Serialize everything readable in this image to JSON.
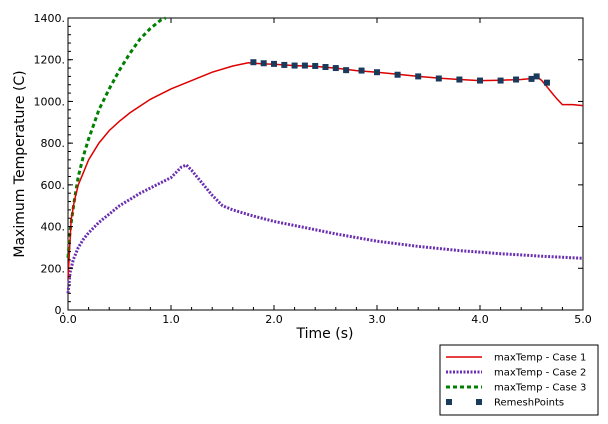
{
  "chart_data": {
    "type": "line",
    "xlabel": "Time (s)",
    "ylabel": "Maximum Temperature (C)",
    "xlim": [
      0,
      5
    ],
    "ylim": [
      0,
      1400
    ],
    "xticks": [
      "0.0",
      "1.0",
      "2.0",
      "3.0",
      "4.0",
      "5.0"
    ],
    "yticks": [
      "0.",
      "200.",
      "400.",
      "600.",
      "800.",
      "1000.",
      "1200.",
      "1400."
    ],
    "grid": false,
    "legend_position": "bottom-right-outside",
    "series": [
      {
        "name": "maxTemp - Case 1",
        "color": "#dd0000",
        "style": "solid",
        "x": [
          0.0,
          0.03,
          0.06,
          0.1,
          0.15,
          0.2,
          0.3,
          0.4,
          0.5,
          0.6,
          0.8,
          1.0,
          1.2,
          1.4,
          1.6,
          1.75,
          1.9,
          2.0,
          2.2,
          2.4,
          2.6,
          2.8,
          3.0,
          3.2,
          3.4,
          3.6,
          3.8,
          4.0,
          4.2,
          4.4,
          4.5,
          4.55,
          4.6,
          4.65,
          4.7,
          4.75,
          4.8,
          4.9,
          5.0
        ],
        "y": [
          150,
          430,
          520,
          600,
          660,
          720,
          800,
          860,
          905,
          945,
          1010,
          1060,
          1100,
          1140,
          1170,
          1185,
          1180,
          1178,
          1172,
          1168,
          1160,
          1148,
          1140,
          1130,
          1120,
          1112,
          1105,
          1100,
          1102,
          1105,
          1110,
          1120,
          1100,
          1070,
          1040,
          1010,
          985,
          985,
          980
        ]
      },
      {
        "name": "maxTemp - Case 2",
        "color": "#6a2fb0",
        "style": "dotted",
        "x": [
          0.0,
          0.02,
          0.05,
          0.1,
          0.15,
          0.2,
          0.3,
          0.4,
          0.5,
          0.6,
          0.7,
          0.8,
          0.9,
          1.0,
          1.05,
          1.1,
          1.15,
          1.2,
          1.3,
          1.4,
          1.5,
          1.6,
          1.8,
          2.0,
          2.3,
          2.6,
          3.0,
          3.4,
          3.8,
          4.2,
          4.6,
          5.0
        ],
        "y": [
          80,
          180,
          240,
          300,
          340,
          370,
          420,
          460,
          500,
          530,
          560,
          585,
          610,
          635,
          660,
          685,
          695,
          670,
          610,
          550,
          500,
          480,
          450,
          425,
          395,
          365,
          330,
          305,
          285,
          270,
          258,
          248
        ]
      },
      {
        "name": "maxTemp - Case 3",
        "color": "#008000",
        "style": "dashed",
        "x": [
          0.0,
          0.02,
          0.04,
          0.06,
          0.08,
          0.1,
          0.15,
          0.2,
          0.25,
          0.3,
          0.4,
          0.5,
          0.6,
          0.7,
          0.8,
          0.9,
          0.95
        ],
        "y": [
          250,
          380,
          450,
          520,
          580,
          640,
          740,
          820,
          890,
          960,
          1060,
          1150,
          1230,
          1300,
          1350,
          1390,
          1400
        ]
      },
      {
        "name": "RemeshPoints",
        "color": "#1a3a5c",
        "style": "markers",
        "x": [
          1.8,
          1.9,
          2.0,
          2.1,
          2.2,
          2.3,
          2.4,
          2.5,
          2.6,
          2.7,
          2.85,
          3.0,
          3.2,
          3.4,
          3.6,
          3.8,
          4.0,
          4.2,
          4.35,
          4.5,
          4.55,
          4.65
        ],
        "y": [
          1188,
          1183,
          1180,
          1175,
          1172,
          1172,
          1170,
          1165,
          1160,
          1150,
          1148,
          1140,
          1128,
          1120,
          1110,
          1105,
          1100,
          1100,
          1105,
          1108,
          1120,
          1090
        ]
      }
    ]
  }
}
